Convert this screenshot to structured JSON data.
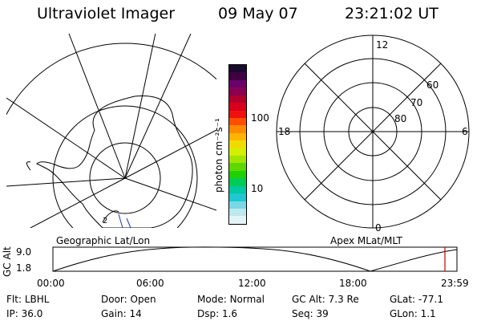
{
  "header": {
    "instrument": "Ultraviolet Imager",
    "date": "09 May 07",
    "time": "23:21:02 UT"
  },
  "left_map": {
    "caption": "Geographic Lat/Lon",
    "marker": "2"
  },
  "colorbar": {
    "unit_label": "photon cm⁻²s⁻¹",
    "ticks": [
      "100",
      "10"
    ],
    "scale": "log",
    "colors": [
      "#1a0a2e",
      "#400040",
      "#6a006a",
      "#8a0050",
      "#b0002a",
      "#d8001c",
      "#f01010",
      "#ff4e00",
      "#ff8a00",
      "#ffb400",
      "#f0dc00",
      "#d2f000",
      "#a0e600",
      "#5ed800",
      "#20d000",
      "#00cc55",
      "#00c8a0",
      "#1ec8d2",
      "#78d8e6",
      "#bce8ee",
      "#e4f4f6"
    ]
  },
  "right_dial": {
    "caption": "Apex MLat/MLT",
    "mlt_labels": {
      "top": "12",
      "left": "18",
      "right": "6",
      "bottom": "0"
    },
    "lat_labels": [
      "60",
      "70",
      "80"
    ]
  },
  "altitude_strip": {
    "ylabel": "GC Alt",
    "y_ticks": [
      "9.0",
      "1.8"
    ],
    "x_ticks": [
      "00:00",
      "06:00",
      "12:00",
      "18:00",
      "23:59"
    ],
    "current_time_color": "#cc0000"
  },
  "info": {
    "row1": [
      {
        "label": "Flt:",
        "value": "LBHL"
      },
      {
        "label": "Door:",
        "value": "Open"
      },
      {
        "label": "Mode:",
        "value": "Normal"
      },
      {
        "label": "GC Alt:",
        "value": "7.3 Re"
      },
      {
        "label": "GLat:",
        "value": "-77.1"
      }
    ],
    "row2": [
      {
        "label": "IP:",
        "value": "36.0"
      },
      {
        "label": "Gain:",
        "value": "14"
      },
      {
        "label": "Dsp:",
        "value": "1.6"
      },
      {
        "label": "Seq:",
        "value": "39"
      },
      {
        "label": "GLon:",
        "value": "1.1"
      }
    ]
  }
}
